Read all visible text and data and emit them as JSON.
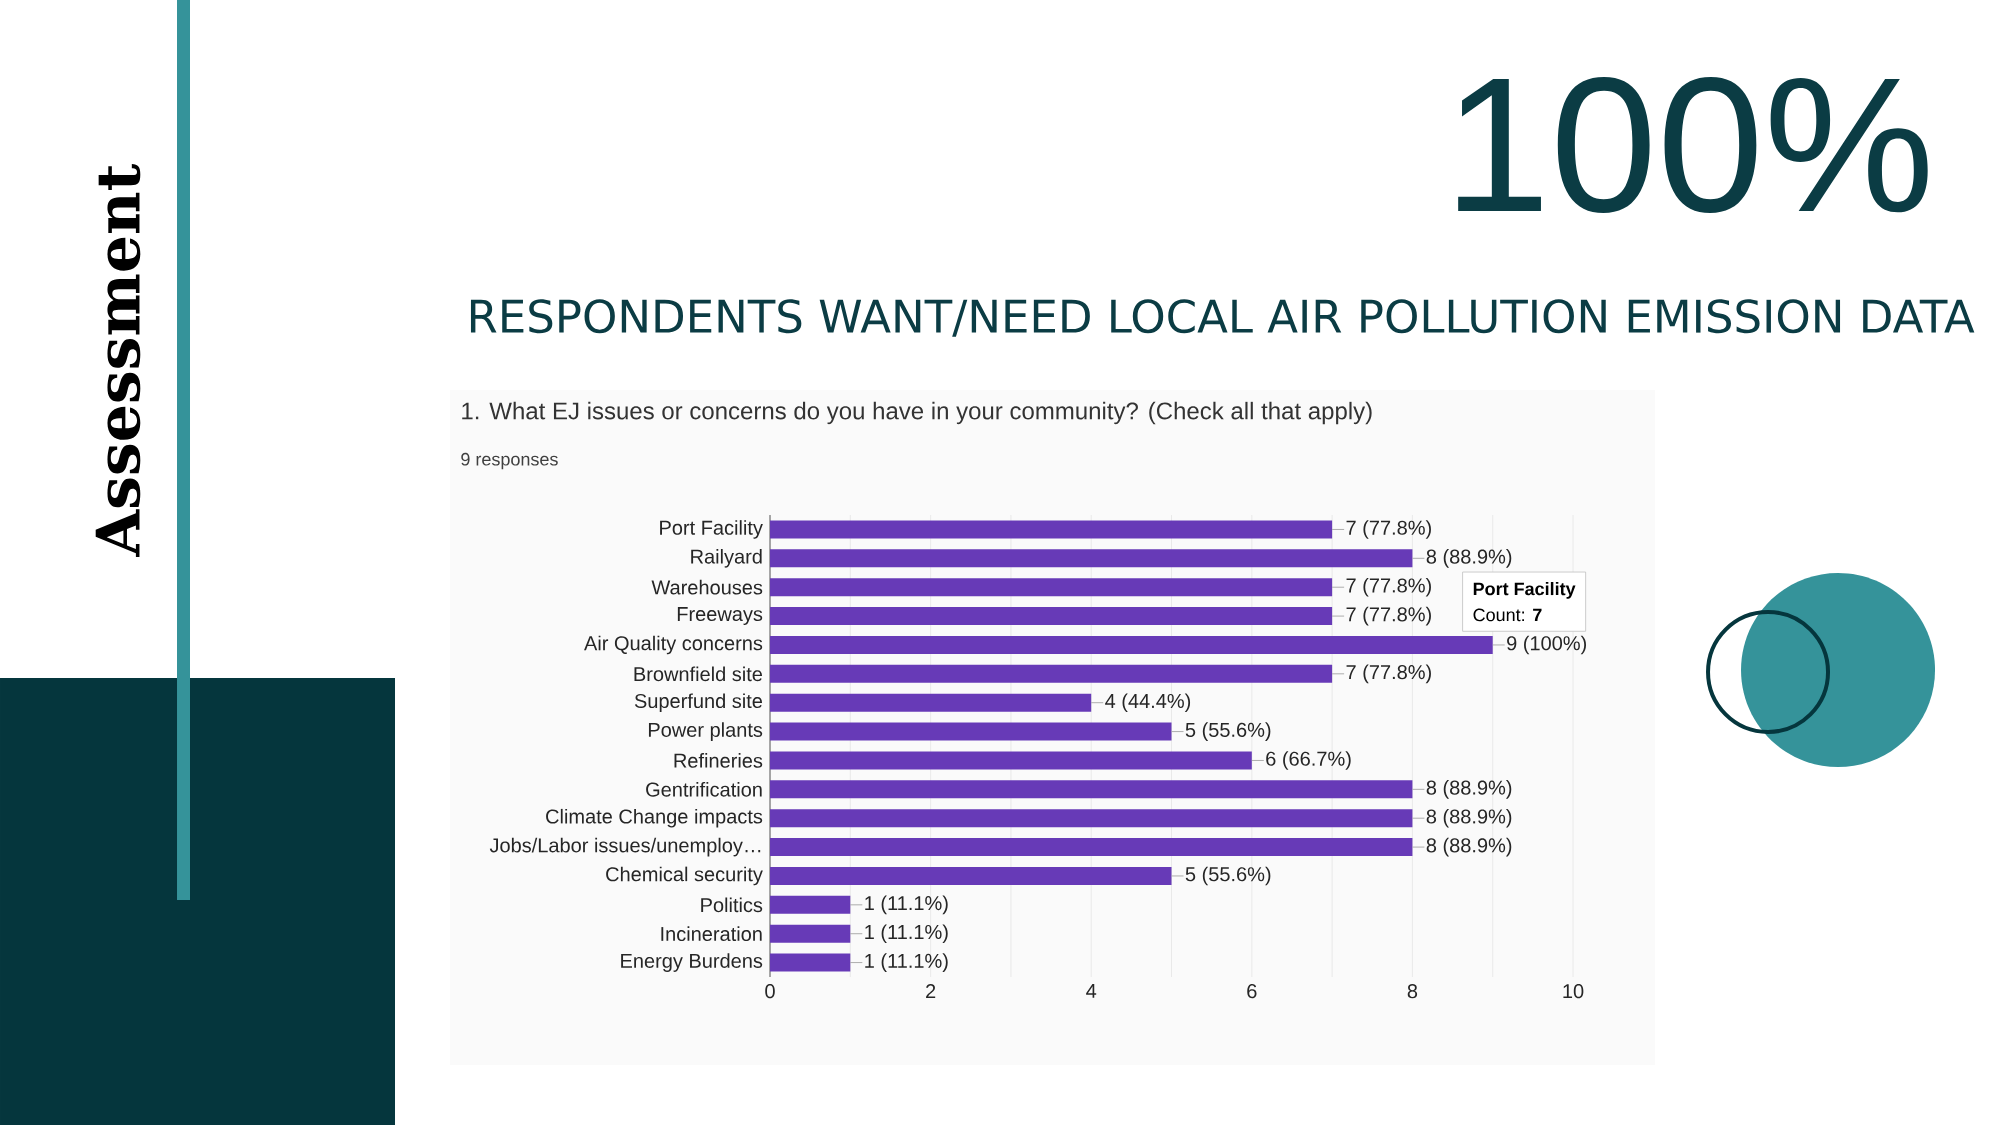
{
  "chart_data": {
    "type": "bar",
    "orientation": "horizontal",
    "title": "1. What EJ issues or concerns do you have in your community? (Check all that apply)",
    "subtitle": "9 responses",
    "categories": [
      "Port Facility",
      "Railyard",
      "Warehouses",
      "Freeways",
      "Air Quality concerns",
      "Brownfield site",
      "Superfund site",
      "Power plants",
      "Refineries",
      "Gentrification",
      "Climate Change impacts",
      "Jobs/Labor issues/unemploy…",
      "Chemical security",
      "Politics",
      "Incineration",
      "Energy Burdens"
    ],
    "values": [
      7,
      8,
      7,
      7,
      9,
      7,
      4,
      5,
      6,
      8,
      8,
      8,
      5,
      1,
      1,
      1
    ],
    "value_labels": [
      "7 (77.8%)",
      "8 (88.9%)",
      "7 (77.8%)",
      "7 (77.8%)",
      "9 (100%)",
      "7 (77.8%)",
      "4 (44.4%)",
      "5 (55.6%)",
      "6 (66.7%)",
      "8 (88.9%)",
      "8 (88.9%)",
      "8 (88.9%)",
      "5 (55.6%)",
      "1 (11.1%)",
      "1 (11.1%)",
      "1 (11.1%)"
    ],
    "color": "#673ab7",
    "xlim": [
      0,
      10
    ],
    "xticks": [
      0,
      {
        "value": 1,
        "label": null
      },
      2,
      {
        "value": 3,
        "label": null
      },
      4,
      {
        "value": 5,
        "label": null
      },
      6,
      {
        "value": 7,
        "label": null
      },
      8,
      {
        "value": 9,
        "label": null
      },
      10
    ],
    "grid": "x",
    "annotations": [
      "Assessment",
      "100%",
      "RESPONDENTS WANT/NEED LOCAL AIR POLLUTION EMISSION DATA",
      "Port Facility",
      "Count: **7**"
    ]
  }
}
